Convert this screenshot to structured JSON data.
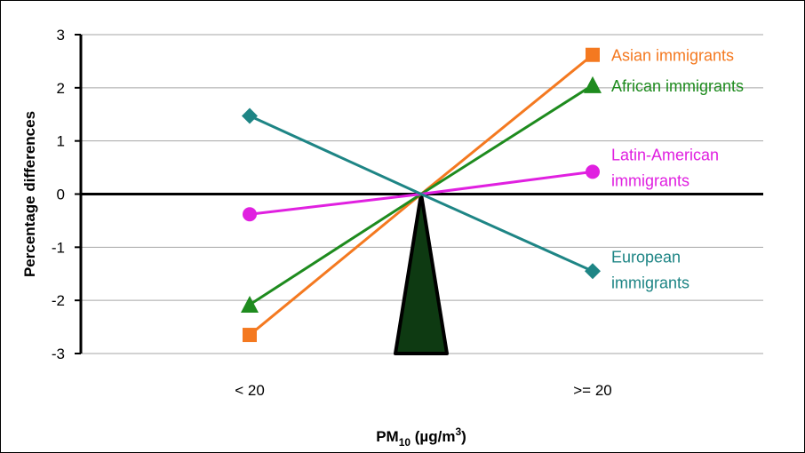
{
  "chart_data": {
    "type": "line",
    "xlabel": "PM",
    "xlabel_sub": "10",
    "xlabel_unit": " (µg/m",
    "xlabel_sup": "3",
    "xlabel_close": ")",
    "ylabel": "Percentage differences",
    "categories": [
      "< 20",
      ">= 20"
    ],
    "ylim": [
      -3,
      3
    ],
    "yticks": [
      "3",
      "2",
      "1",
      "0",
      "-1",
      "-2",
      "-3"
    ],
    "ytick_values": [
      3,
      2,
      1,
      0,
      -1,
      -2,
      -3
    ],
    "grid": true,
    "series": [
      {
        "name": "Asian immigrants",
        "label_lines": [
          "Asian immigrants"
        ],
        "values": [
          -2.65,
          2.62
        ],
        "color": "#F47920",
        "marker": "square"
      },
      {
        "name": "African immigrants",
        "label_lines": [
          "African immigrants"
        ],
        "values": [
          -2.08,
          2.05
        ],
        "color": "#1E8B1E",
        "marker": "triangle"
      },
      {
        "name": "Latin-American immigrants",
        "label_lines": [
          "Latin-American",
          "immigrants"
        ],
        "values": [
          -0.38,
          0.42
        ],
        "color": "#E020E0",
        "marker": "circle"
      },
      {
        "name": "European immigrants",
        "label_lines": [
          "European",
          "immigrants"
        ],
        "values": [
          1.47,
          -1.45
        ],
        "color": "#1E8585",
        "marker": "diamond"
      }
    ],
    "pivot_color": "#0E3A12"
  }
}
